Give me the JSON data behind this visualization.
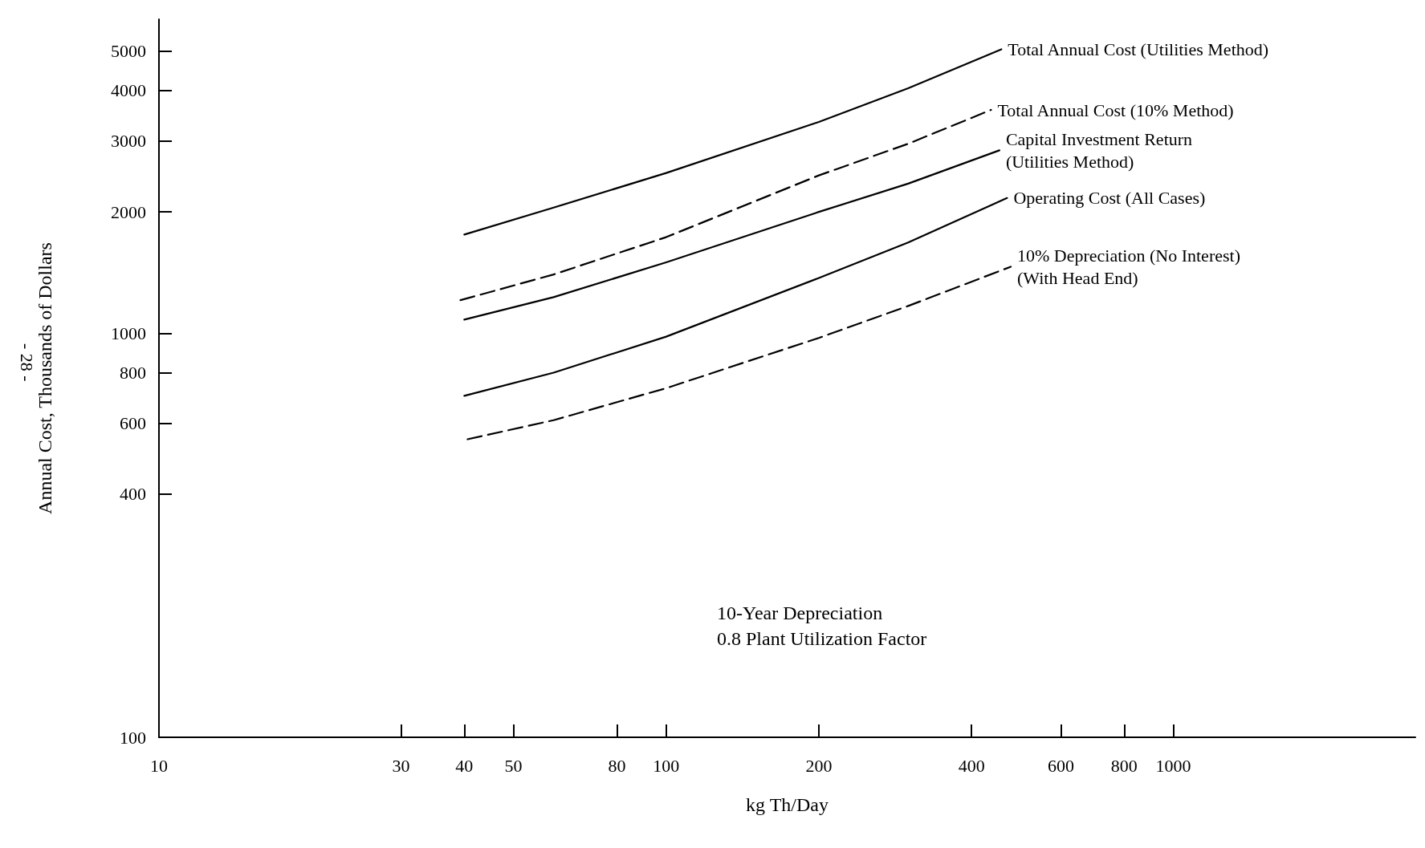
{
  "chart_data": {
    "type": "line",
    "xlabel": "kg Th/Day",
    "ylabel": "Annual Cost, Thousands of Dollars",
    "log": "xy",
    "grid": false,
    "legend": false,
    "marker": "none",
    "xlim": [
      10,
      3000
    ],
    "ylim": [
      100,
      6000
    ],
    "xticks": [
      10,
      30,
      40,
      50,
      80,
      100,
      200,
      400,
      600,
      800,
      1000
    ],
    "yticks": [
      100,
      400,
      600,
      800,
      1000,
      2000,
      3000,
      4000,
      5000
    ],
    "series": [
      {
        "name": "Total Annual Cost (Utilities Method)",
        "color": "#000000",
        "line_style": "solid",
        "x": [
          40,
          60,
          100,
          200,
          300,
          458
        ],
        "values": [
          1758,
          2050,
          2497,
          3340,
          4050,
          5055
        ]
      },
      {
        "name": "Total Annual Cost (10% Method)",
        "color": "#000000",
        "line_style": "dashed",
        "x": [
          39.3,
          60,
          100,
          200,
          300,
          437
        ],
        "values": [
          1209,
          1400,
          1732,
          2463,
          2950,
          3578
        ]
      },
      {
        "name": "Capital Investment Return\n(Utilities Method)",
        "color": "#000000",
        "line_style": "solid",
        "x": [
          40,
          60,
          100,
          200,
          300,
          454
        ],
        "values": [
          1082,
          1230,
          1500,
          2000,
          2350,
          2842
        ]
      },
      {
        "name": "Operating Cost (All Cases)",
        "color": "#000000",
        "line_style": "solid",
        "x": [
          40,
          60,
          100,
          200,
          300,
          470
        ],
        "values": [
          701,
          800,
          982,
          1372,
          1680,
          2165
        ]
      },
      {
        "name": "10% Depreciation (No Interest)\n(With Head End)",
        "color": "#000000",
        "line_style": "dashed",
        "x": [
          40.6,
          60,
          100,
          200,
          300,
          478
        ],
        "values": [
          547,
          610,
          732,
          975,
          1170,
          1463
        ]
      }
    ],
    "annotations": [
      "10-Year Depreciation\n0.8 Plant Utilization Factor",
      "- 28 -"
    ]
  }
}
